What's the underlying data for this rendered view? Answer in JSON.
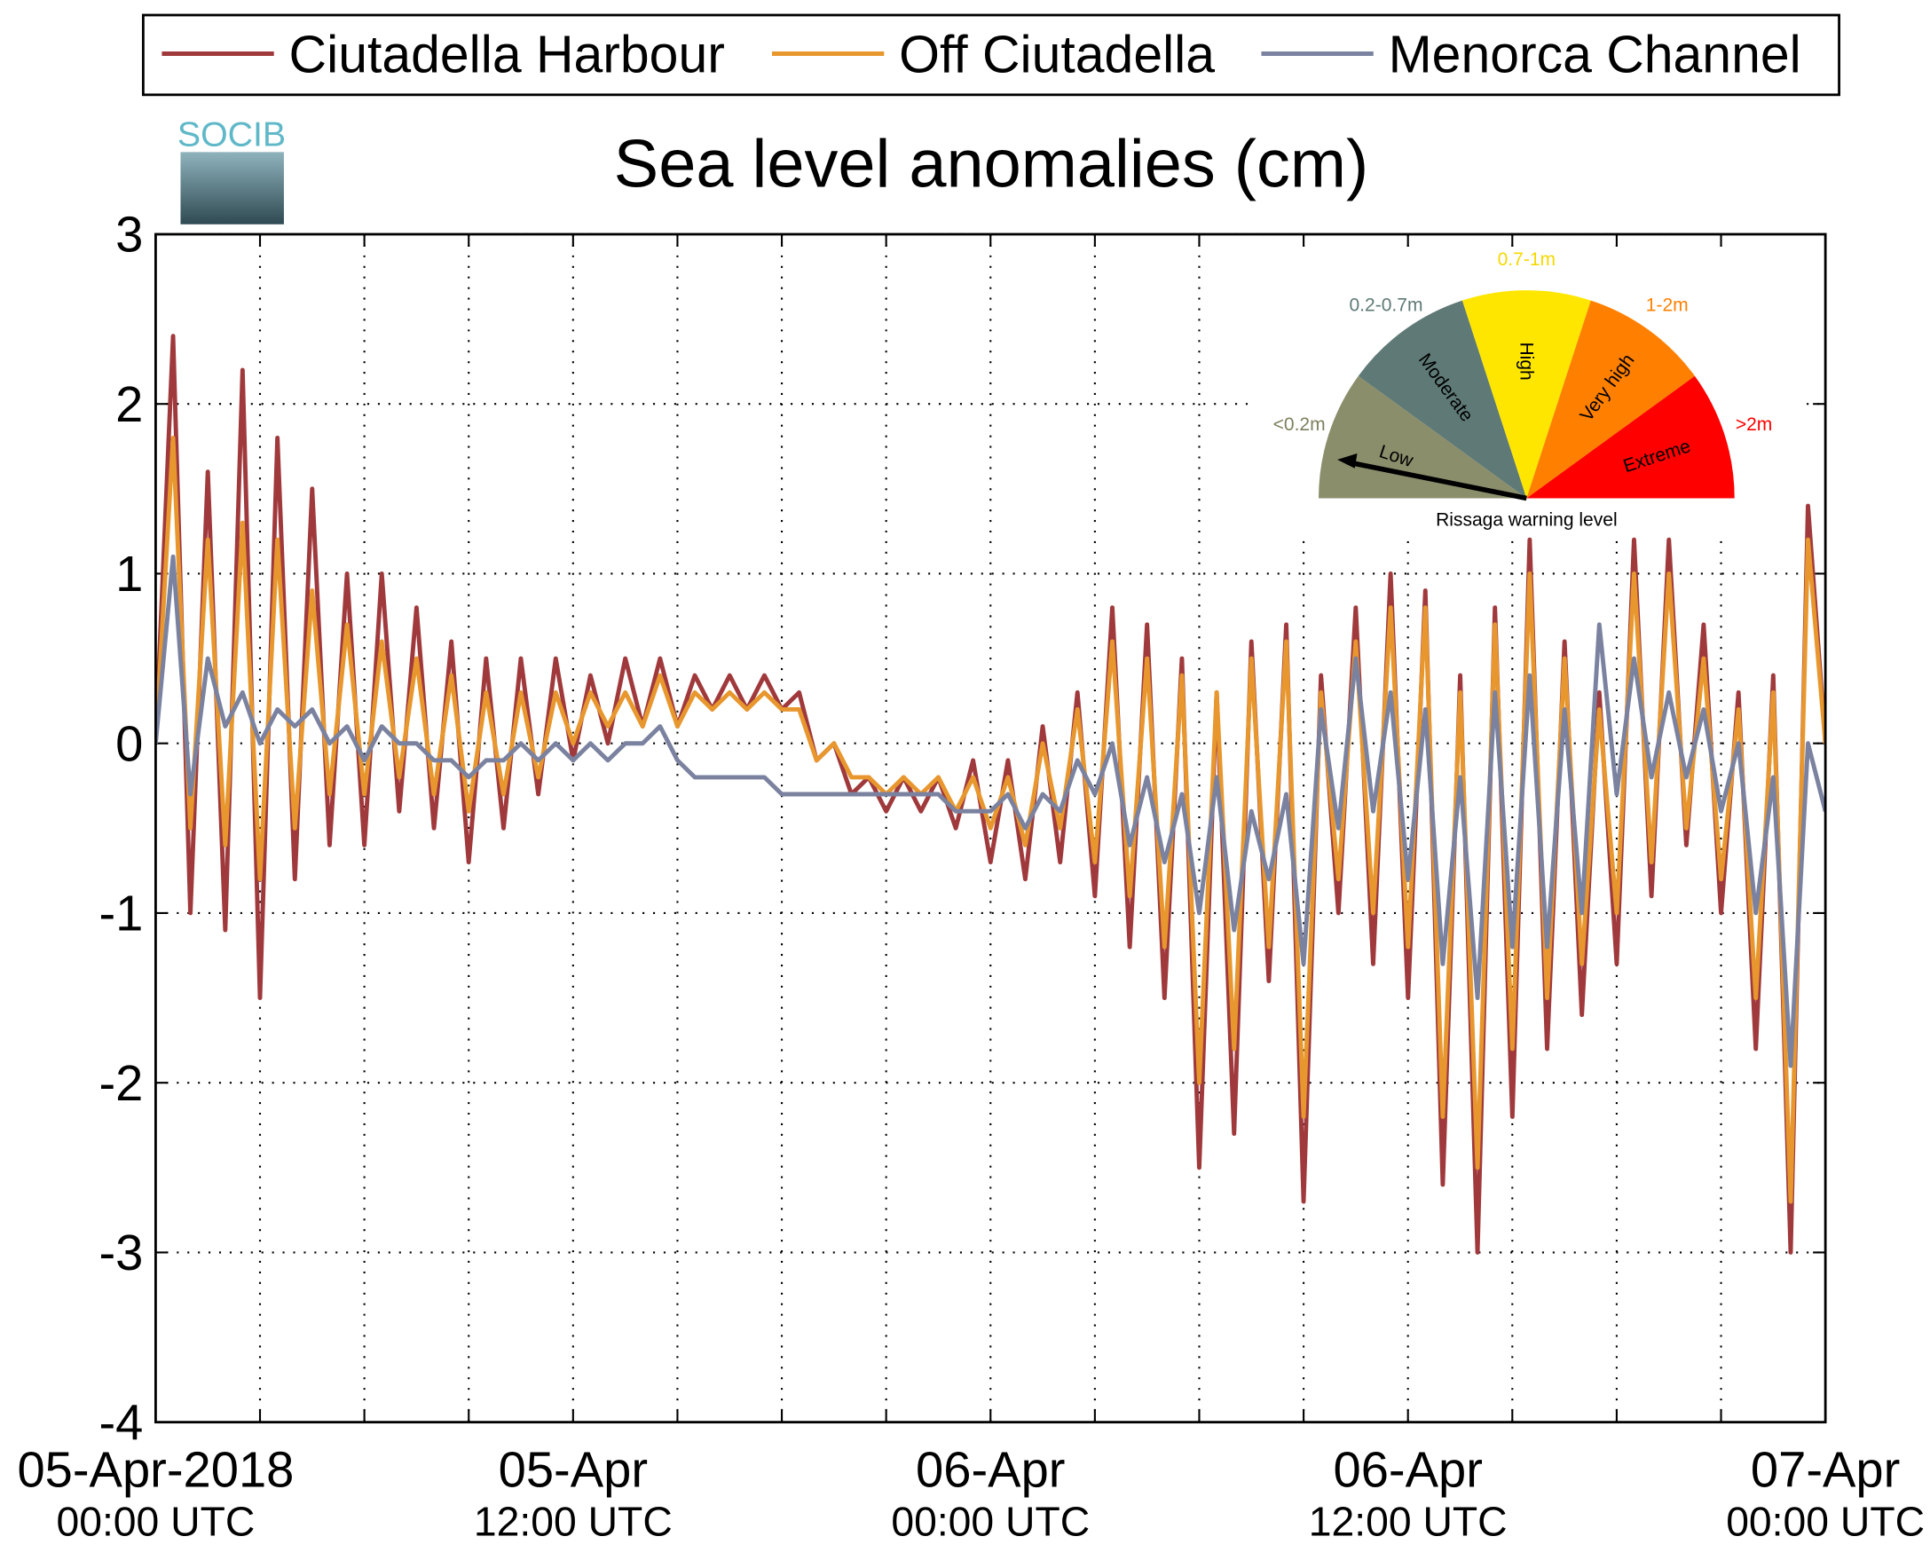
{
  "chart_data": {
    "type": "line",
    "title": "Sea level anomalies (cm)",
    "logo": "SOCIB",
    "x": [
      0,
      0.5,
      1,
      1.5,
      2,
      2.5,
      3,
      3.5,
      4,
      4.5,
      5,
      5.5,
      6,
      6.5,
      7,
      7.5,
      8,
      8.5,
      9,
      9.5,
      10,
      10.5,
      11,
      11.5,
      12,
      12.5,
      13,
      13.5,
      14,
      14.5,
      15,
      15.5,
      16,
      16.5,
      17,
      17.5,
      18,
      18.5,
      19,
      19.5,
      20,
      20.5,
      21,
      21.5,
      22,
      22.5,
      23,
      23.5,
      24,
      24.5,
      25,
      25.5,
      26,
      26.5,
      27,
      27.5,
      28,
      28.5,
      29,
      29.5,
      30,
      30.5,
      31,
      31.5,
      32,
      32.5,
      33,
      33.5,
      34,
      34.5,
      35,
      35.5,
      36,
      36.5,
      37,
      37.5,
      38,
      38.5,
      39,
      39.5,
      40,
      40.5,
      41,
      41.5,
      42,
      42.5,
      43,
      43.5,
      44,
      44.5,
      45,
      45.5,
      46,
      46.5,
      47,
      47.5,
      48
    ],
    "series": [
      {
        "name": "Ciutadella Harbour",
        "color": "#a0393c",
        "values": [
          0,
          2.4,
          -1.0,
          1.6,
          -1.1,
          2.2,
          -1.5,
          1.8,
          -0.8,
          1.5,
          -0.6,
          1.0,
          -0.6,
          1.0,
          -0.4,
          0.8,
          -0.5,
          0.6,
          -0.7,
          0.5,
          -0.5,
          0.5,
          -0.3,
          0.5,
          -0.1,
          0.4,
          0.0,
          0.5,
          0.1,
          0.5,
          0.1,
          0.4,
          0.2,
          0.4,
          0.2,
          0.4,
          0.2,
          0.3,
          -0.1,
          0.0,
          -0.3,
          -0.2,
          -0.4,
          -0.2,
          -0.4,
          -0.2,
          -0.5,
          -0.1,
          -0.7,
          -0.1,
          -0.8,
          0.1,
          -0.7,
          0.3,
          -0.9,
          0.8,
          -1.2,
          0.7,
          -1.5,
          0.5,
          -2.5,
          0.3,
          -2.3,
          0.6,
          -1.4,
          0.7,
          -2.7,
          0.4,
          -1.0,
          0.8,
          -1.3,
          1.0,
          -1.5,
          0.9,
          -2.6,
          0.4,
          -3.0,
          0.8,
          -2.2,
          1.2,
          -1.8,
          0.6,
          -1.6,
          0.3,
          -1.3,
          1.2,
          -0.9,
          1.2,
          -0.6,
          0.7,
          -1.0,
          0.3,
          -1.8,
          0.4,
          -3.0,
          1.4,
          0.0
        ]
      },
      {
        "name": "Off Ciutadella",
        "color": "#e8972e",
        "values": [
          0,
          1.8,
          -0.5,
          1.2,
          -0.6,
          1.3,
          -0.8,
          1.2,
          -0.5,
          0.9,
          -0.3,
          0.7,
          -0.3,
          0.6,
          -0.2,
          0.5,
          -0.3,
          0.4,
          -0.4,
          0.3,
          -0.3,
          0.3,
          -0.2,
          0.3,
          0.0,
          0.3,
          0.1,
          0.3,
          0.1,
          0.4,
          0.1,
          0.3,
          0.2,
          0.3,
          0.2,
          0.3,
          0.2,
          0.2,
          -0.1,
          0.0,
          -0.2,
          -0.2,
          -0.3,
          -0.2,
          -0.3,
          -0.2,
          -0.4,
          -0.2,
          -0.5,
          -0.2,
          -0.6,
          0.0,
          -0.5,
          0.2,
          -0.7,
          0.6,
          -0.9,
          0.5,
          -1.2,
          0.4,
          -2.0,
          0.3,
          -1.8,
          0.5,
          -1.2,
          0.6,
          -2.2,
          0.3,
          -0.8,
          0.6,
          -1.0,
          0.8,
          -1.2,
          0.8,
          -2.2,
          0.3,
          -2.5,
          0.7,
          -1.8,
          1.0,
          -1.5,
          0.5,
          -1.3,
          0.2,
          -1.0,
          1.0,
          -0.7,
          1.0,
          -0.5,
          0.5,
          -0.8,
          0.2,
          -1.5,
          0.3,
          -2.7,
          1.2,
          0.0
        ]
      },
      {
        "name": "Menorca Channel",
        "color": "#7a82a0",
        "values": [
          0,
          1.1,
          -0.3,
          0.5,
          0.1,
          0.3,
          0.0,
          0.2,
          0.1,
          0.2,
          0.0,
          0.1,
          -0.1,
          0.1,
          0.0,
          0.0,
          -0.1,
          -0.1,
          -0.2,
          -0.1,
          -0.1,
          0.0,
          -0.1,
          0.0,
          -0.1,
          0.0,
          -0.1,
          0.0,
          0.0,
          0.1,
          -0.1,
          -0.2,
          -0.2,
          -0.2,
          -0.2,
          -0.2,
          -0.3,
          -0.3,
          -0.3,
          -0.3,
          -0.3,
          -0.3,
          -0.3,
          -0.3,
          -0.3,
          -0.3,
          -0.4,
          -0.4,
          -0.4,
          -0.3,
          -0.5,
          -0.3,
          -0.4,
          -0.1,
          -0.3,
          0.0,
          -0.6,
          -0.2,
          -0.7,
          -0.3,
          -1.0,
          -0.2,
          -1.1,
          -0.4,
          -0.8,
          -0.3,
          -1.3,
          0.2,
          -0.5,
          0.5,
          -0.4,
          0.3,
          -0.8,
          0.2,
          -1.3,
          -0.2,
          -1.5,
          0.3,
          -1.2,
          0.4,
          -1.2,
          0.2,
          -1.0,
          0.7,
          -0.3,
          0.5,
          -0.2,
          0.3,
          -0.2,
          0.2,
          -0.4,
          0.0,
          -1.0,
          -0.2,
          -1.9,
          0.0,
          -0.4
        ]
      }
    ],
    "xlim": [
      0,
      48
    ],
    "xticks": [
      {
        "value": 0,
        "label": [
          "05-Apr-2018",
          "00:00 UTC"
        ]
      },
      {
        "value": 3,
        "label": null
      },
      {
        "value": 6,
        "label": null
      },
      {
        "value": 9,
        "label": null
      },
      {
        "value": 12,
        "label": [
          "05-Apr",
          "12:00 UTC"
        ]
      },
      {
        "value": 15,
        "label": null
      },
      {
        "value": 18,
        "label": null
      },
      {
        "value": 21,
        "label": null
      },
      {
        "value": 24,
        "label": [
          "06-Apr",
          "00:00 UTC"
        ]
      },
      {
        "value": 27,
        "label": null
      },
      {
        "value": 30,
        "label": null
      },
      {
        "value": 33,
        "label": null
      },
      {
        "value": 36,
        "label": [
          "06-Apr",
          "12:00 UTC"
        ]
      },
      {
        "value": 39,
        "label": null
      },
      {
        "value": 42,
        "label": null
      },
      {
        "value": 45,
        "label": null
      },
      {
        "value": 48,
        "label": [
          "07-Apr",
          "00:00 UTC"
        ]
      }
    ],
    "ylim": [
      -4,
      3
    ],
    "yticks": [
      -4,
      -3,
      -2,
      -1,
      0,
      1,
      2,
      3
    ],
    "grid": true,
    "legend": "top",
    "gauge": {
      "title": "Rissaga warning level",
      "segments": [
        {
          "name": "Low",
          "range": "<0.2m",
          "color": "#8b8e6b",
          "range_color": "#7d805e"
        },
        {
          "name": "Moderate",
          "range": "0.2-0.7m",
          "color": "#5f7a76",
          "range_color": "#5f7a76"
        },
        {
          "name": "High",
          "range": "0.7-1m",
          "color": "#ffe600",
          "range_color": "#f5d800"
        },
        {
          "name": "Very high",
          "range": "1-2m",
          "color": "#ff8000",
          "range_color": "#ff8000"
        },
        {
          "name": "Extreme",
          "range": ">2m",
          "color": "#ff0000",
          "range_color": "#ff0000"
        }
      ]
    }
  }
}
